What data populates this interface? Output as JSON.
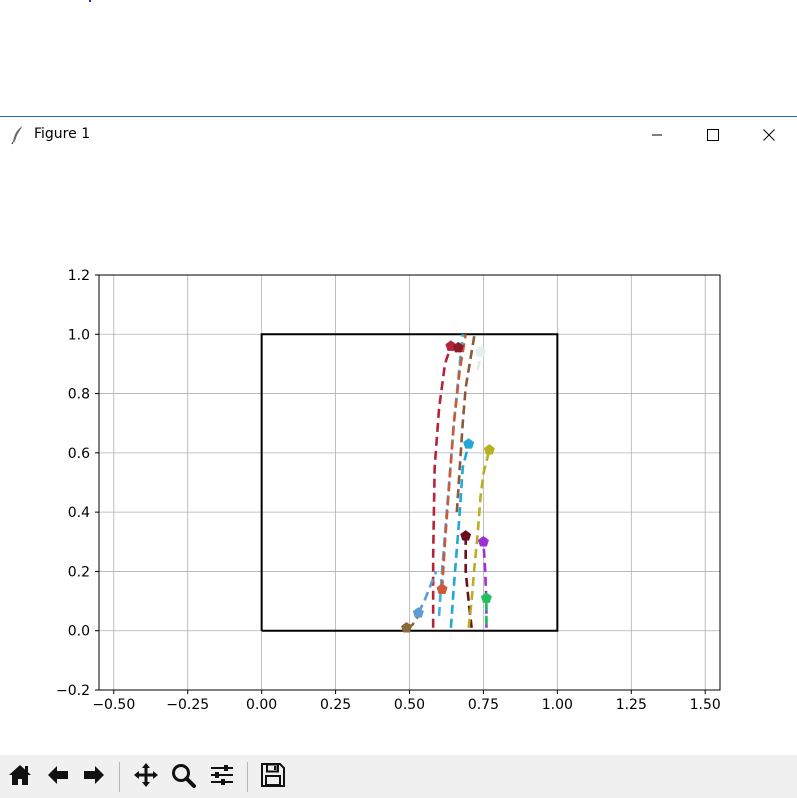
{
  "window": {
    "title": "Figure 1",
    "icons": {
      "app": "feather-icon",
      "minimize": "minimize-icon",
      "maximize": "maximize-icon",
      "close": "close-icon"
    }
  },
  "toolbar": {
    "buttons": [
      {
        "name": "home-button",
        "icon": "home-icon"
      },
      {
        "name": "back-button",
        "icon": "arrow-left-icon"
      },
      {
        "name": "forward-button",
        "icon": "arrow-right-icon"
      },
      {
        "name": "pan-button",
        "icon": "move-icon"
      },
      {
        "name": "zoom-button",
        "icon": "magnifier-icon"
      },
      {
        "name": "configure-subplots-button",
        "icon": "sliders-icon"
      },
      {
        "name": "save-button",
        "icon": "floppy-disk-icon"
      }
    ]
  },
  "chart_data": {
    "type": "line",
    "title": "",
    "xlabel": "",
    "ylabel": "",
    "xlim": [
      -0.55,
      1.55
    ],
    "ylim": [
      -0.2,
      1.2
    ],
    "xticks": [
      -0.5,
      -0.25,
      0.0,
      0.25,
      0.5,
      0.75,
      1.0,
      1.25,
      1.5
    ],
    "xtick_labels": [
      "−0.50",
      "−0.25",
      "0.00",
      "0.25",
      "0.50",
      "0.75",
      "1.00",
      "1.25",
      "1.50"
    ],
    "yticks": [
      -0.2,
      0.0,
      0.2,
      0.4,
      0.6,
      0.8,
      1.0,
      1.2
    ],
    "ytick_labels": [
      "−0.2",
      "0.0",
      "0.2",
      "0.4",
      "0.6",
      "0.8",
      "1.0",
      "1.2"
    ],
    "grid": true,
    "box": {
      "x": [
        0,
        1,
        1,
        0,
        0
      ],
      "y": [
        0,
        0,
        1,
        1,
        0
      ],
      "color": "#000000"
    },
    "series": [
      {
        "color": "#b5233a",
        "x": [
          0.58,
          0.58,
          0.585,
          0.6,
          0.62,
          0.64
        ],
        "y": [
          0.01,
          0.25,
          0.55,
          0.75,
          0.9,
          0.96
        ]
      },
      {
        "color": "#3ab0e8",
        "x": [
          0.6,
          0.61,
          0.63,
          0.65,
          0.67,
          0.68
        ],
        "y": [
          0.05,
          0.2,
          0.45,
          0.7,
          0.9,
          1.0
        ]
      },
      {
        "color": "#1fa8d8",
        "x": [
          0.64,
          0.65,
          0.67,
          0.68,
          0.7
        ],
        "y": [
          0.01,
          0.15,
          0.4,
          0.55,
          0.63
        ]
      },
      {
        "color": "#cc5a3a",
        "x": [
          0.61,
          0.62,
          0.635,
          0.65,
          0.67,
          0.69
        ],
        "y": [
          0.14,
          0.3,
          0.5,
          0.7,
          0.88,
          1.0
        ]
      },
      {
        "color": "#5f9ad8",
        "x": [
          0.53,
          0.55,
          0.57,
          0.59
        ],
        "y": [
          0.06,
          0.1,
          0.15,
          0.2
        ]
      },
      {
        "color": "#8b6a3a",
        "x": [
          0.49,
          0.51,
          0.53
        ],
        "y": [
          0.01,
          0.02,
          0.05
        ]
      },
      {
        "color": "#8a5a3a",
        "x": [
          0.66,
          0.67,
          0.68,
          0.69,
          0.71,
          0.72
        ],
        "y": [
          0.4,
          0.55,
          0.7,
          0.82,
          0.94,
          1.0
        ]
      },
      {
        "color": "#e8e8e8",
        "x": [
          0.73,
          0.74,
          0.75
        ],
        "y": [
          0.88,
          0.92,
          0.95
        ]
      },
      {
        "color": "#6b0e1e",
        "x": [
          0.69,
          0.69,
          0.7,
          0.71
        ],
        "y": [
          0.32,
          0.2,
          0.1,
          0.01
        ]
      },
      {
        "color": "#b8b020",
        "x": [
          0.7,
          0.71,
          0.72,
          0.73,
          0.74,
          0.75,
          0.77
        ],
        "y": [
          0.01,
          0.1,
          0.22,
          0.32,
          0.45,
          0.53,
          0.61
        ]
      },
      {
        "color": "#9b30d8",
        "x": [
          0.76,
          0.76,
          0.755,
          0.75
        ],
        "y": [
          0.01,
          0.1,
          0.22,
          0.3
        ]
      },
      {
        "color": "#20c060",
        "x": [
          0.76,
          0.76
        ],
        "y": [
          0.02,
          0.11
        ]
      }
    ],
    "markers": [
      {
        "color": "#b5233a",
        "x": 0.64,
        "y": 0.96
      },
      {
        "color": "#8a1a2a",
        "x": 0.665,
        "y": 0.955
      },
      {
        "color": "#e0f0f0",
        "x": 0.74,
        "y": 0.94
      },
      {
        "color": "#1fa8d8",
        "x": 0.7,
        "y": 0.63
      },
      {
        "color": "#b8b020",
        "x": 0.77,
        "y": 0.61
      },
      {
        "color": "#6b0e1e",
        "x": 0.69,
        "y": 0.32
      },
      {
        "color": "#9b30d8",
        "x": 0.75,
        "y": 0.3
      },
      {
        "color": "#cc5a3a",
        "x": 0.61,
        "y": 0.14
      },
      {
        "color": "#20c060",
        "x": 0.76,
        "y": 0.11
      },
      {
        "color": "#5f9ad8",
        "x": 0.53,
        "y": 0.06
      },
      {
        "color": "#8b6a3a",
        "x": 0.49,
        "y": 0.01
      }
    ]
  }
}
